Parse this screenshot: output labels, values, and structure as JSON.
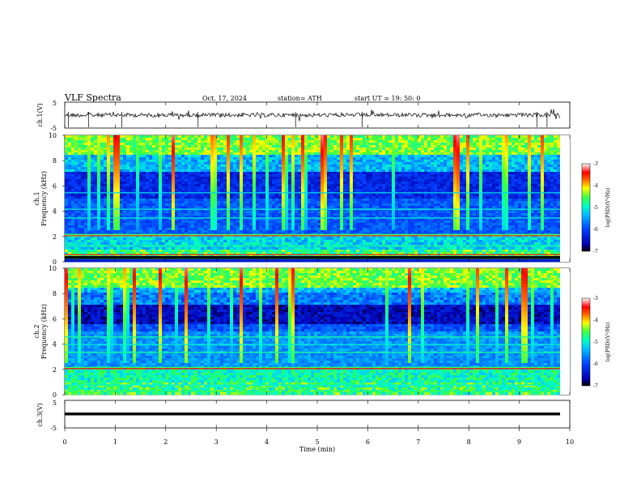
{
  "header": {
    "title": "VLF  Spectra",
    "date": "Oct. 17, 2024",
    "station": "station= ATH",
    "start": "start  UT  =    19: 50: 0"
  },
  "chart_data": [
    {
      "type": "line",
      "name": "ch1-voltage",
      "ylabel": "ch.1(V)",
      "ylim": [
        -5,
        5
      ],
      "yticks": [
        "5",
        "-5"
      ],
      "xlim": [
        0,
        10
      ],
      "description_values": {
        "baseline": 0.0,
        "amplitude": 1.0
      }
    },
    {
      "type": "heatmap",
      "name": "ch1-spectrogram",
      "ylabel": "ch.1\nFrequency  (kHz)",
      "ylim": [
        0,
        10
      ],
      "yticks": [
        "0",
        "2",
        "4",
        "6",
        "8",
        "10"
      ],
      "xlim": [
        0,
        9.8
      ],
      "colorbar": {
        "label": "log(PSD)(V²/Hz)",
        "range": [
          -7,
          -3
        ],
        "ticks": [
          "-3",
          "-4",
          "-5",
          "-6",
          "-7"
        ]
      }
    },
    {
      "type": "heatmap",
      "name": "ch2-spectrogram",
      "ylabel": "ch.2\nFrequency  (kHz)",
      "ylim": [
        0,
        10
      ],
      "yticks": [
        "0",
        "2",
        "4",
        "6",
        "8",
        "10"
      ],
      "xlim": [
        0,
        9.8
      ],
      "colorbar": {
        "label": "log(PSD)(V²/Hz)",
        "range": [
          -7,
          -3
        ],
        "ticks": [
          "-3",
          "-4",
          "-5",
          "-6",
          "-7"
        ]
      }
    },
    {
      "type": "line",
      "name": "ch3-voltage",
      "ylabel": "ch.3(V)",
      "ylim": [
        -5,
        5
      ],
      "yticks": [
        "5",
        "-5"
      ],
      "xlim": [
        0,
        10
      ],
      "description_values": {
        "baseline": 0.0
      }
    }
  ],
  "xaxis": {
    "label": "Time  (min)",
    "ticks": [
      "0",
      "1",
      "2",
      "3",
      "4",
      "5",
      "6",
      "7",
      "8",
      "9",
      "10"
    ],
    "range": [
      0,
      10
    ]
  },
  "colors": {
    "jet": [
      "#000000",
      "#0000a8",
      "#0030ff",
      "#00a0ff",
      "#00ffe0",
      "#40ff40",
      "#ffff00",
      "#ff8000",
      "#ff0000",
      "#ffffff"
    ]
  }
}
